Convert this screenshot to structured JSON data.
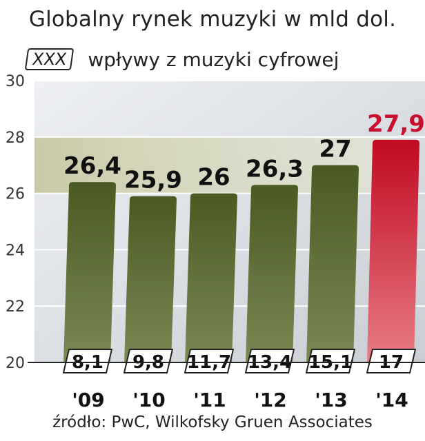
{
  "chart_data": {
    "type": "bar",
    "title": "Globalny rynek muzyki w mld dol.",
    "legend_label": "wpływy z muzyki cyfrowej",
    "legend_box_text": "XXX",
    "categories": [
      "'09",
      "'10",
      "'11",
      "'12",
      "'13",
      "'14"
    ],
    "series": [
      {
        "values": [
          26.4,
          25.9,
          26,
          26.3,
          27,
          27.9
        ],
        "labels": [
          "26,4",
          "25,9",
          "26",
          "26,3",
          "27",
          "27,9"
        ]
      },
      {
        "name": "wpływy z muzyki cyfrowej",
        "values": [
          8.1,
          9.8,
          11.7,
          13.4,
          15.1,
          17
        ],
        "labels": [
          "8,1",
          "9,8",
          "11,7",
          "13,4",
          "15,1",
          "17"
        ]
      }
    ],
    "ylim": [
      20,
      30
    ],
    "yticks": [
      20,
      22,
      24,
      26,
      28,
      30
    ],
    "grid": true,
    "highlight_index": 5,
    "colors": {
      "bar": "#55632a",
      "highlight": "#c8102e",
      "grid": "#ffffff",
      "background": "#dde1e6"
    },
    "source": "źródło: PwC, Wilkofsky Gruen Associates"
  }
}
